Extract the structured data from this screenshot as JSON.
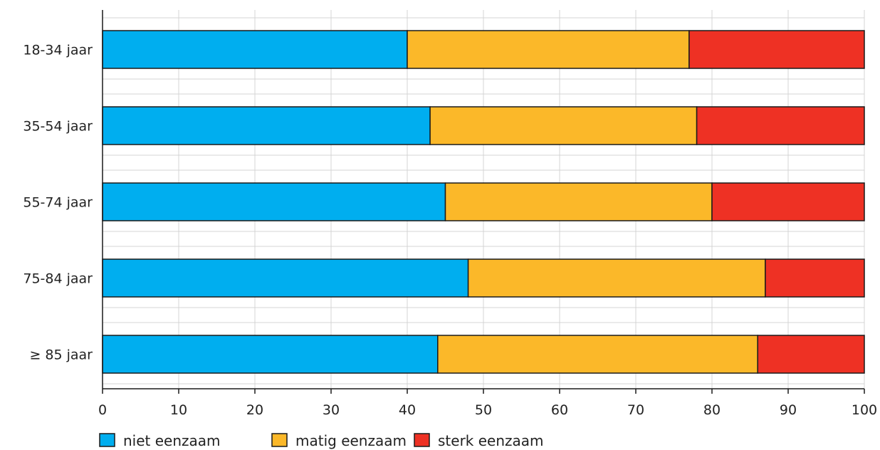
{
  "chart_data": {
    "type": "bar",
    "orientation": "horizontal",
    "stacked": true,
    "categories": [
      "18-34 jaar",
      "35-54 jaar",
      "55-74 jaar",
      "75-84 jaar",
      "≥ 85 jaar"
    ],
    "series": [
      {
        "name": "niet eenzaam",
        "color": "#00aeef",
        "values": [
          40,
          43,
          45,
          48,
          44
        ]
      },
      {
        "name": "matig eenzaam",
        "color": "#fbb829",
        "values": [
          37,
          35,
          35,
          39,
          42
        ]
      },
      {
        "name": "sterk eenzaam",
        "color": "#ee3124",
        "values": [
          23,
          22,
          20,
          13,
          14
        ]
      }
    ],
    "xlim": [
      0,
      100
    ],
    "xticks": [
      0,
      10,
      20,
      30,
      40,
      50,
      60,
      70,
      80,
      90,
      100
    ],
    "grid": true,
    "legend_position": "bottom-left"
  }
}
